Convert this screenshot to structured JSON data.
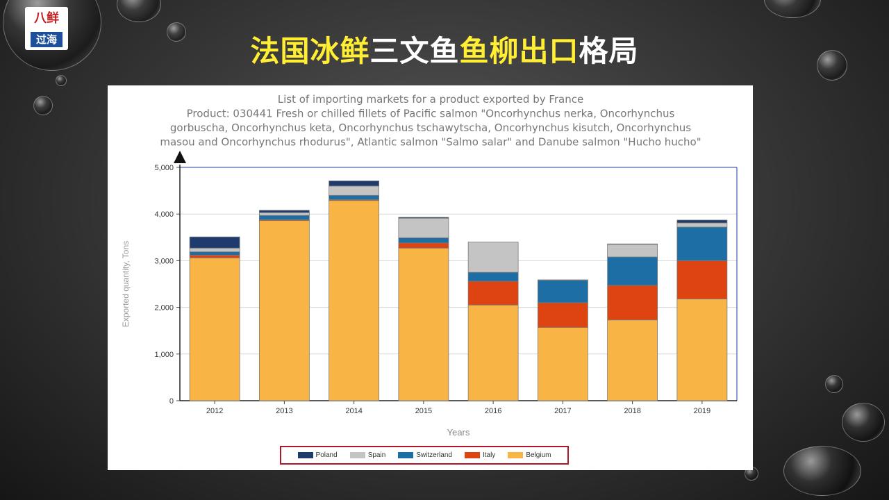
{
  "logo": {
    "top_text": "八鲜",
    "bottom_text": "过海"
  },
  "slide_title": {
    "parts": [
      {
        "text": "法国冰鲜",
        "color": "yellow"
      },
      {
        "text": "三文鱼",
        "color": "white"
      },
      {
        "text": "鱼柳出口",
        "color": "yellow"
      },
      {
        "text": "格局",
        "color": "white"
      }
    ]
  },
  "chart_data": {
    "type": "bar",
    "stacked": true,
    "title": [
      "List of importing markets for a product exported by France",
      "Product: 030441 Fresh or chilled fillets of Pacific salmon \"Oncorhynchus nerka, Oncorhynchus",
      "gorbuscha, Oncorhynchus keta, Oncorhynchus tschawytscha, Oncorhynchus kisutch, Oncorhynchus",
      "masou and Oncorhynchus rhodurus\", Atlantic salmon \"Salmo salar\" and Danube salmon \"Hucho hucho\""
    ],
    "xlabel": "Years",
    "ylabel": "Exported quantity, Tons",
    "ylim": [
      0,
      5000
    ],
    "yticks": [
      0,
      1000,
      2000,
      3000,
      4000,
      5000
    ],
    "ytick_labels": [
      "0",
      "1,000",
      "2,000",
      "3,000",
      "4,000",
      "5,000"
    ],
    "grid": true,
    "legend_position": "bottom",
    "categories": [
      "2012",
      "2013",
      "2014",
      "2015",
      "2016",
      "2017",
      "2018",
      "2019"
    ],
    "series": [
      {
        "name": "Belgium",
        "color": "#f8b445",
        "values": [
          3060,
          3860,
          4290,
          3270,
          2050,
          1570,
          1730,
          2180
        ]
      },
      {
        "name": "Italy",
        "color": "#dd4411",
        "values": [
          60,
          20,
          20,
          110,
          510,
          530,
          740,
          820
        ]
      },
      {
        "name": "Switzerland",
        "color": "#1c6ea4",
        "values": [
          70,
          90,
          90,
          110,
          190,
          480,
          610,
          720
        ]
      },
      {
        "name": "Spain",
        "color": "#c4c4c4",
        "values": [
          80,
          60,
          200,
          420,
          650,
          0,
          270,
          90
        ]
      },
      {
        "name": "Poland",
        "color": "#1f3b6e",
        "values": [
          240,
          50,
          110,
          20,
          0,
          10,
          10,
          60
        ]
      }
    ],
    "legend_order": [
      "Poland",
      "Spain",
      "Switzerland",
      "Italy",
      "Belgium"
    ]
  }
}
